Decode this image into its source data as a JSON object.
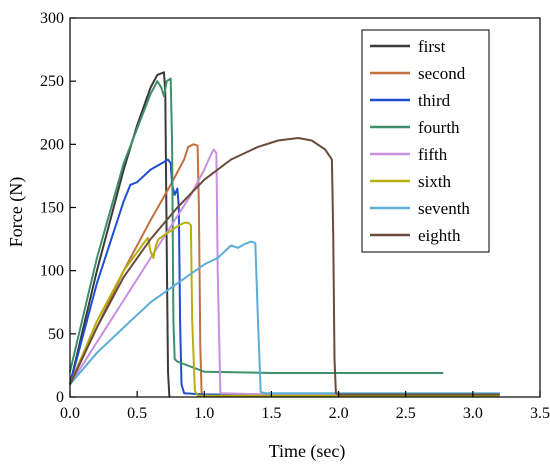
{
  "chart_data": {
    "type": "line",
    "xlabel": "Time (sec)",
    "ylabel": "Force (N)",
    "xlim": [
      0,
      3.5
    ],
    "ylim": [
      0,
      300
    ],
    "xticks": [
      "0.0",
      "0.5",
      "1.0",
      "1.5",
      "2.0",
      "2.5",
      "3.0",
      "3.5"
    ],
    "yticks": [
      "0",
      "50",
      "100",
      "150",
      "200",
      "250",
      "300"
    ],
    "grid": false,
    "legend_position": "top-right",
    "series": [
      {
        "name": "first",
        "color": "#3a3a3a",
        "x": [
          0.0,
          0.1,
          0.2,
          0.3,
          0.4,
          0.5,
          0.6,
          0.65,
          0.7,
          0.71,
          0.72,
          0.73,
          0.74
        ],
        "y": [
          10,
          55,
          100,
          140,
          180,
          215,
          245,
          255,
          257,
          240,
          120,
          20,
          0
        ]
      },
      {
        "name": "second",
        "color": "#c2703d",
        "x": [
          0.0,
          0.2,
          0.4,
          0.6,
          0.75,
          0.85,
          0.88,
          0.92,
          0.95,
          0.96,
          0.97,
          0.98,
          1.0,
          1.5,
          2.0,
          2.5,
          3.0,
          3.2
        ],
        "y": [
          10,
          55,
          100,
          140,
          168,
          188,
          198,
          200,
          199,
          150,
          40,
          3,
          1,
          1,
          1,
          1,
          1,
          1
        ]
      },
      {
        "name": "third",
        "color": "#1f4fcf",
        "x": [
          0.0,
          0.2,
          0.4,
          0.45,
          0.5,
          0.6,
          0.7,
          0.73,
          0.75,
          0.76,
          0.78,
          0.8,
          0.81,
          0.82,
          0.83,
          0.85,
          1.0,
          1.5,
          2.0,
          2.5,
          3.0,
          3.2
        ],
        "y": [
          10,
          90,
          155,
          168,
          170,
          180,
          186,
          188,
          185,
          168,
          160,
          165,
          150,
          60,
          10,
          3,
          2,
          2,
          2,
          2,
          2,
          2
        ]
      },
      {
        "name": "fourth",
        "color": "#3f8f6b",
        "x": [
          0.0,
          0.2,
          0.4,
          0.6,
          0.65,
          0.68,
          0.7,
          0.72,
          0.75,
          0.76,
          0.77,
          0.78,
          0.8,
          0.9,
          1.0,
          1.5,
          2.0,
          2.5,
          2.78
        ],
        "y": [
          20,
          110,
          185,
          240,
          250,
          245,
          238,
          250,
          252,
          200,
          60,
          30,
          28,
          24,
          20,
          19,
          19,
          19,
          19
        ]
      },
      {
        "name": "fifth",
        "color": "#c98fe0",
        "x": [
          0.0,
          0.3,
          0.6,
          0.9,
          1.0,
          1.05,
          1.07,
          1.09,
          1.1,
          1.12,
          1.5,
          2.0,
          2.5,
          3.0,
          3.2
        ],
        "y": [
          10,
          60,
          110,
          160,
          180,
          192,
          196,
          193,
          100,
          3,
          2,
          2,
          2,
          2,
          2
        ]
      },
      {
        "name": "sixth",
        "color": "#b5b010",
        "x": [
          0.0,
          0.2,
          0.4,
          0.55,
          0.58,
          0.6,
          0.62,
          0.64,
          0.66,
          0.7,
          0.8,
          0.85,
          0.88,
          0.9,
          0.91,
          0.93,
          0.95,
          1.0,
          1.5,
          2.0,
          2.5,
          3.0,
          3.2
        ],
        "y": [
          10,
          60,
          100,
          122,
          126,
          115,
          110,
          120,
          125,
          128,
          135,
          138,
          138,
          136,
          60,
          5,
          1,
          1,
          1,
          1,
          1,
          1,
          1
        ]
      },
      {
        "name": "seventh",
        "color": "#5aaed6",
        "x": [
          0.0,
          0.2,
          0.4,
          0.6,
          0.8,
          1.0,
          1.1,
          1.2,
          1.25,
          1.3,
          1.35,
          1.38,
          1.4,
          1.42,
          1.45,
          1.5,
          2.0,
          2.5,
          3.0,
          3.2
        ],
        "y": [
          10,
          35,
          55,
          75,
          90,
          105,
          110,
          120,
          118,
          121,
          123,
          122,
          60,
          4,
          3,
          3,
          3,
          3,
          3,
          3
        ]
      },
      {
        "name": "eighth",
        "color": "#6a4a3a",
        "x": [
          0.0,
          0.2,
          0.4,
          0.6,
          0.8,
          1.0,
          1.2,
          1.4,
          1.55,
          1.7,
          1.8,
          1.9,
          1.95,
          1.96,
          1.97,
          1.98,
          2.0,
          2.5,
          3.0,
          3.2
        ],
        "y": [
          10,
          55,
          95,
          125,
          150,
          172,
          188,
          198,
          203,
          205,
          203,
          196,
          188,
          130,
          30,
          3,
          2,
          2,
          2,
          2
        ]
      }
    ]
  }
}
